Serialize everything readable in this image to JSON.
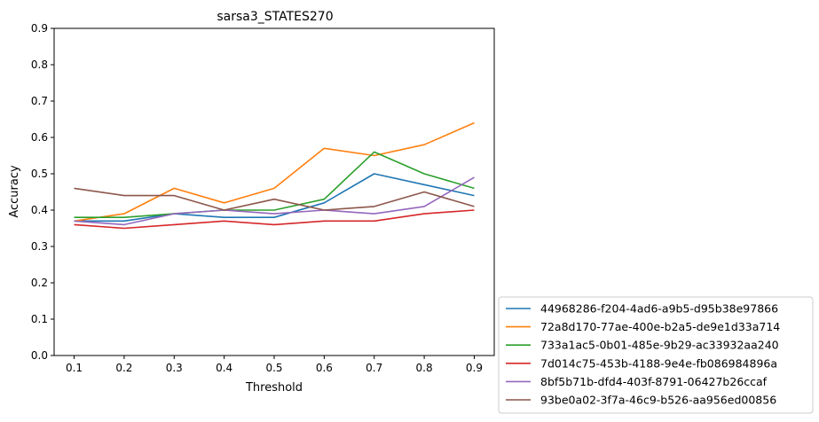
{
  "chart_data": {
    "type": "line",
    "title": "sarsa3_STATES270",
    "xlabel": "Threshold",
    "ylabel": "Accuracy",
    "x": [
      0.1,
      0.2,
      0.3,
      0.4,
      0.5,
      0.6,
      0.7,
      0.8,
      0.9
    ],
    "x_ticks": [
      "0.1",
      "0.2",
      "0.3",
      "0.4",
      "0.5",
      "0.6",
      "0.7",
      "0.8",
      "0.9"
    ],
    "y_ticks": [
      "0.0",
      "0.1",
      "0.2",
      "0.3",
      "0.4",
      "0.5",
      "0.6",
      "0.7",
      "0.8",
      "0.9"
    ],
    "xlim": [
      0.06,
      0.94
    ],
    "ylim": [
      0.0,
      0.9
    ],
    "grid": false,
    "legend_position": "outside lower right",
    "series": [
      {
        "name": "44968286-f204-4ad6-a9b5-d95b38e97866",
        "color": "#1f77b4",
        "values": [
          0.37,
          0.37,
          0.39,
          0.38,
          0.38,
          0.42,
          0.5,
          0.47,
          0.44
        ]
      },
      {
        "name": "72a8d170-77ae-400e-b2a5-de9e1d33a714",
        "color": "#ff7f0e",
        "values": [
          0.37,
          0.39,
          0.46,
          0.42,
          0.46,
          0.57,
          0.55,
          0.58,
          0.64
        ]
      },
      {
        "name": "733a1ac5-0b01-485e-9b29-ac33932aa240",
        "color": "#2ca02c",
        "values": [
          0.38,
          0.38,
          0.39,
          0.4,
          0.4,
          0.43,
          0.56,
          0.5,
          0.46
        ]
      },
      {
        "name": "7d014c75-453b-4188-9e4e-fb086984896a",
        "color": "#d62728",
        "values": [
          0.36,
          0.35,
          0.36,
          0.37,
          0.36,
          0.37,
          0.37,
          0.39,
          0.4
        ]
      },
      {
        "name": "8bf5b71b-dfd4-403f-8791-06427b26ccaf",
        "color": "#9467bd",
        "values": [
          0.37,
          0.36,
          0.39,
          0.4,
          0.39,
          0.4,
          0.39,
          0.41,
          0.49
        ]
      },
      {
        "name": "93be0a02-3f7a-46c9-b526-aa956ed00856",
        "color": "#8c564b",
        "values": [
          0.46,
          0.44,
          0.44,
          0.4,
          0.43,
          0.4,
          0.41,
          0.45,
          0.41
        ]
      }
    ]
  }
}
